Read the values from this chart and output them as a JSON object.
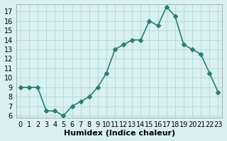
{
  "x": [
    0,
    1,
    2,
    3,
    4,
    5,
    6,
    7,
    8,
    9,
    10,
    11,
    12,
    13,
    14,
    15,
    16,
    17,
    18,
    19,
    20,
    21,
    22,
    23
  ],
  "y": [
    9,
    9,
    9,
    6.5,
    6.5,
    6.0,
    7.0,
    7.5,
    8.0,
    9.0,
    10.5,
    13.0,
    13.5,
    14.0,
    14.0,
    16.0,
    15.5,
    17.5,
    16.5,
    13.5,
    13.0,
    12.5,
    10.5,
    8.5
  ],
  "line_color": "#2a7f6f",
  "marker": "D",
  "marker_size": 3,
  "background_color": "#d8f0f0",
  "grid_color": "#b0d8d8",
  "xlabel": "Humidex (Indice chaleur)",
  "ylabel": "",
  "title": "",
  "xlim": [
    -0.5,
    23.5
  ],
  "ylim": [
    6,
    17.5
  ],
  "yticks": [
    6,
    7,
    8,
    9,
    10,
    11,
    12,
    13,
    14,
    15,
    16,
    17
  ],
  "xticks": [
    0,
    1,
    2,
    3,
    4,
    5,
    6,
    7,
    8,
    9,
    10,
    11,
    12,
    13,
    14,
    15,
    16,
    17,
    18,
    19,
    20,
    21,
    22,
    23
  ],
  "xlabel_fontsize": 8,
  "tick_fontsize": 7,
  "line_width": 1.2
}
